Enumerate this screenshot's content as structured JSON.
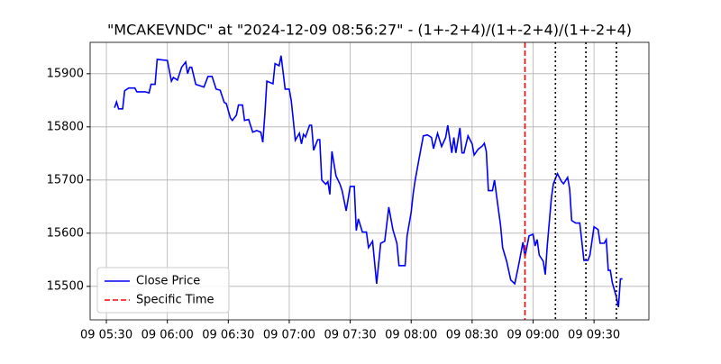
{
  "chart_data": {
    "type": "line",
    "title": "\"MCAKEVNDC\" at \"2024-12-09 08:56:27\" - (1+-2+4)/(1+-2+4)/(1+-2+4)",
    "x": [
      "09 05:34",
      "09 05:35",
      "09 05:36",
      "09 05:38",
      "09 05:39",
      "09 05:41",
      "09 05:44",
      "09 05:45",
      "09 05:49",
      "09 05:51",
      "09 05:52",
      "09 05:54",
      "09 05:55",
      "09 06:00",
      "09 06:02",
      "09 06:03",
      "09 06:05",
      "09 06:07",
      "09 06:09",
      "09 06:10",
      "09 06:11",
      "09 06:12",
      "09 06:14",
      "09 06:18",
      "09 06:20",
      "09 06:22",
      "09 06:24",
      "09 06:26",
      "09 06:28",
      "09 06:29",
      "09 06:31",
      "09 06:32",
      "09 06:34",
      "09 06:35",
      "09 06:37",
      "09 06:38",
      "09 06:40",
      "09 06:42",
      "09 06:44",
      "09 06:46",
      "09 06:47",
      "09 06:48",
      "09 06:49",
      "09 06:52",
      "09 06:53",
      "09 06:55",
      "09 06:56",
      "09 06:58",
      "09 07:00",
      "09 07:01",
      "09 07:03",
      "09 07:05",
      "09 07:06",
      "09 07:07",
      "09 07:08",
      "09 07:10",
      "09 07:11",
      "09 07:12",
      "09 07:14",
      "09 07:15",
      "09 07:16",
      "09 07:18",
      "09 07:19",
      "09 07:20",
      "09 07:21",
      "09 07:23",
      "09 07:25",
      "09 07:26",
      "09 07:28",
      "09 07:30",
      "09 07:32",
      "09 07:33",
      "09 07:34",
      "09 07:36",
      "09 07:38",
      "09 07:39",
      "09 07:41",
      "09 07:43",
      "09 07:45",
      "09 07:47",
      "09 07:49",
      "09 07:51",
      "09 07:53",
      "09 07:54",
      "09 07:57",
      "09 07:58",
      "09 08:00",
      "09 08:01",
      "09 08:02",
      "09 08:04",
      "09 08:06",
      "09 08:08",
      "09 08:10",
      "09 08:11",
      "09 08:13",
      "09 08:15",
      "09 08:17",
      "09 08:18",
      "09 08:20",
      "09 08:21",
      "09 08:22",
      "09 08:24",
      "09 08:25",
      "09 08:26",
      "09 08:28",
      "09 08:30",
      "09 08:31",
      "09 08:33",
      "09 08:35",
      "09 08:36",
      "09 08:37",
      "09 08:38",
      "09 08:40",
      "09 08:41",
      "09 08:43",
      "09 08:44",
      "09 08:45",
      "09 08:47",
      "09 08:49",
      "09 08:51",
      "09 08:53",
      "09 08:55",
      "09 08:56",
      "09 08:58",
      "09 09:00",
      "09 09:01",
      "09 09:02",
      "09 09:03",
      "09 09:05",
      "09 09:06",
      "09 09:07",
      "09 09:09",
      "09 09:10",
      "09 09:12",
      "09 09:14",
      "09 09:15",
      "09 09:17",
      "09 09:18",
      "09 09:19",
      "09 09:21",
      "09 09:23",
      "09 09:25",
      "09 09:27",
      "09 09:28",
      "09 09:30",
      "09 09:32",
      "09 09:33",
      "09 09:35",
      "09 09:36",
      "09 09:37",
      "09 09:38",
      "09 09:39",
      "09 09:41",
      "09 09:42",
      "09 09:43",
      "09 09:44"
    ],
    "series": [
      {
        "name": "Close Price",
        "color": "#0000ff",
        "values": [
          15836,
          15847,
          15834,
          15834,
          15868,
          15873,
          15873,
          15866,
          15866,
          15864,
          15880,
          15880,
          15927,
          15925,
          15886,
          15893,
          15888,
          15912,
          15922,
          15900,
          15912,
          15912,
          15880,
          15875,
          15895,
          15895,
          15871,
          15869,
          15846,
          15844,
          15817,
          15812,
          15822,
          15841,
          15841,
          15812,
          15814,
          15790,
          15793,
          15790,
          15771,
          15824,
          15886,
          15881,
          15919,
          15915,
          15934,
          15871,
          15871,
          15849,
          15775,
          15788,
          15768,
          15786,
          15781,
          15803,
          15803,
          15756,
          15776,
          15776,
          15700,
          15692,
          15697,
          15673,
          15754,
          15708,
          15692,
          15680,
          15642,
          15688,
          15688,
          15605,
          15627,
          15602,
          15602,
          15573,
          15585,
          15505,
          15581,
          15585,
          15649,
          15607,
          15581,
          15539,
          15539,
          15595,
          15639,
          15675,
          15700,
          15742,
          15783,
          15785,
          15780,
          15759,
          15788,
          15763,
          15780,
          15803,
          15751,
          15780,
          15751,
          15798,
          15751,
          15751,
          15783,
          15768,
          15747,
          15758,
          15764,
          15769,
          15754,
          15680,
          15680,
          15700,
          15642,
          15615,
          15573,
          15547,
          15512,
          15505,
          15542,
          15583,
          15556,
          15595,
          15598,
          15576,
          15588,
          15559,
          15547,
          15522,
          15578,
          15666,
          15693,
          15712,
          15697,
          15693,
          15705,
          15683,
          15624,
          15619,
          15619,
          15549,
          15549,
          15559,
          15612,
          15607,
          15581,
          15581,
          15588,
          15530,
          15530,
          15507,
          15480,
          15461,
          15514,
          15514
        ]
      }
    ],
    "vlines": [
      {
        "x": "09 08:56",
        "name": "Specific Time",
        "color": "#ff0000",
        "style": "dashed"
      },
      {
        "x": "09 09:11",
        "color": "#000000",
        "style": "dotted"
      },
      {
        "x": "09 09:26",
        "color": "#000000",
        "style": "dotted"
      },
      {
        "x": "09 09:41",
        "color": "#000000",
        "style": "dotted"
      }
    ],
    "xlim": [
      "09 05:22",
      "09 09:57"
    ],
    "xticks": [
      "09 05:30",
      "09 06:00",
      "09 06:30",
      "09 07:00",
      "09 07:30",
      "09 08:00",
      "09 08:30",
      "09 09:00",
      "09 09:30"
    ],
    "ylim": [
      15437,
      15959
    ],
    "yticks": [
      15500,
      15600,
      15700,
      15800,
      15900
    ],
    "grid": true,
    "legend": "lower left"
  }
}
